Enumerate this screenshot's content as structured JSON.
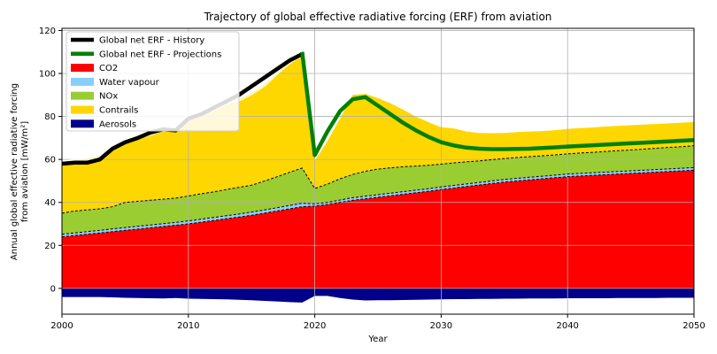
{
  "chart_data": {
    "type": "area",
    "title": "Trajectory of global effective radiative forcing (ERF) from aviation",
    "xlabel": "Year",
    "ylabel_lines": [
      "Annual global effective radiative forcing",
      "from aviation [mW/m²]"
    ],
    "xlim": [
      2000,
      2050
    ],
    "ylim": [
      -12,
      121
    ],
    "xticks": [
      2000,
      2010,
      2020,
      2030,
      2040,
      2050
    ],
    "yticks": [
      0,
      20,
      40,
      60,
      80,
      100,
      120
    ],
    "grid": true,
    "legend_position": "top-left",
    "x": [
      2000,
      2001,
      2002,
      2003,
      2004,
      2005,
      2006,
      2007,
      2008,
      2009,
      2010,
      2011,
      2012,
      2013,
      2014,
      2015,
      2016,
      2017,
      2018,
      2019,
      2020,
      2021,
      2022,
      2023,
      2024,
      2025,
      2026,
      2027,
      2028,
      2029,
      2030,
      2031,
      2032,
      2033,
      2034,
      2035,
      2036,
      2037,
      2038,
      2039,
      2040,
      2041,
      2042,
      2043,
      2044,
      2045,
      2046,
      2047,
      2048,
      2049,
      2050
    ],
    "series": [
      {
        "name": "CO2",
        "color": "#ff0000",
        "values": [
          24,
          24.6,
          25.2,
          25.8,
          26.4,
          27,
          27.6,
          28.2,
          28.8,
          29.4,
          30,
          30.8,
          31.6,
          32.4,
          33.2,
          34,
          35,
          36,
          37,
          38,
          38.3,
          39,
          40,
          41,
          41.7,
          42.4,
          43.1,
          43.8,
          44.5,
          45.2,
          46,
          46.7,
          47.4,
          48.1,
          48.8,
          49.5,
          50,
          50.5,
          51,
          51.5,
          52,
          52.3,
          52.6,
          52.9,
          53.2,
          53.5,
          53.8,
          54.1,
          54.4,
          54.7,
          55
        ]
      },
      {
        "name": "Water vapour",
        "color": "#87cefa",
        "values": [
          1.2,
          1.2,
          1.2,
          1.2,
          1.3,
          1.3,
          1.3,
          1.3,
          1.3,
          1.3,
          1.4,
          1.4,
          1.4,
          1.4,
          1.4,
          1.5,
          1.5,
          1.5,
          1.6,
          1.6,
          1,
          1,
          1.1,
          1.2,
          1.2,
          1.2,
          1.2,
          1.2,
          1.2,
          1.2,
          1.2,
          1.2,
          1.2,
          1.2,
          1.2,
          1.2,
          1.2,
          1.2,
          1.2,
          1.2,
          1.2,
          1.2,
          1.2,
          1.2,
          1.2,
          1.2,
          1.2,
          1.2,
          1.2,
          1.2,
          1.2
        ]
      },
      {
        "name": "NOx",
        "color": "#9acd32",
        "values": [
          9.8,
          10.2,
          10.1,
          10,
          10.3,
          11.7,
          11.6,
          11.5,
          11.4,
          11.3,
          11.6,
          11.8,
          11.9,
          12.2,
          12.4,
          12.5,
          13.4,
          14.4,
          15.4,
          16.4,
          7.2,
          8.5,
          9.9,
          10.8,
          11.6,
          11.9,
          11.8,
          11.6,
          11.2,
          10.9,
          10.6,
          10.5,
          10.3,
          10,
          9.9,
          9.7,
          9.7,
          9.6,
          9.5,
          9.4,
          9.4,
          9.5,
          9.5,
          9.6,
          9.7,
          9.7,
          9.8,
          9.9,
          10,
          10,
          10.2
        ]
      },
      {
        "name": "Contrails",
        "color": "#ffd700",
        "values": [
          23,
          23.5,
          24,
          24.5,
          27,
          29,
          30,
          31,
          32.5,
          32,
          37,
          37.5,
          38.5,
          40.5,
          41,
          43,
          45,
          48.5,
          51.5,
          53,
          12.8,
          20,
          28,
          37,
          36,
          33,
          30,
          26.5,
          23,
          20,
          17.2,
          16,
          14.1,
          13,
          12.3,
          11.9,
          11.8,
          11.7,
          11.5,
          11.5,
          11.6,
          11.6,
          11.6,
          11.6,
          11.5,
          11.5,
          11.4,
          11.3,
          11.2,
          11.2,
          11
        ]
      },
      {
        "name": "Aerosols",
        "color": "#00008b",
        "values": [
          -4,
          -4,
          -4,
          -4,
          -4.2,
          -4.4,
          -4.5,
          -4.6,
          -4.7,
          -4.5,
          -4.8,
          -4.9,
          -5,
          -5.1,
          -5.3,
          -5.5,
          -5.8,
          -6.1,
          -6.4,
          -6.6,
          -3.5,
          -3.5,
          -4.5,
          -5.2,
          -5.6,
          -5.5,
          -5.5,
          -5.4,
          -5.3,
          -5.2,
          -5.1,
          -5,
          -5,
          -4.9,
          -4.9,
          -4.8,
          -4.8,
          -4.7,
          -4.7,
          -4.7,
          -4.6,
          -4.6,
          -4.6,
          -4.6,
          -4.5,
          -4.5,
          -4.5,
          -4.5,
          -4.4,
          -4.4,
          -4.4
        ]
      },
      {
        "name": "Global net ERF - History",
        "color": "#000000",
        "x": [
          2000,
          2001,
          2002,
          2003,
          2004,
          2005,
          2006,
          2007,
          2008,
          2009,
          2010,
          2011,
          2012,
          2013,
          2014,
          2015,
          2016,
          2017,
          2018,
          2019
        ],
        "values": [
          58,
          58.5,
          58.5,
          60,
          65,
          68,
          70,
          72.5,
          74,
          73.5,
          79,
          81,
          84,
          87,
          90,
          94,
          98,
          102,
          106,
          109
        ]
      },
      {
        "name": "Global net ERF - Projections",
        "color": "#008000",
        "x": [
          2019,
          2020,
          2021,
          2022,
          2023,
          2024,
          2025,
          2026,
          2027,
          2028,
          2029,
          2030,
          2031,
          2032,
          2033,
          2034,
          2035,
          2036,
          2037,
          2038,
          2039,
          2040,
          2041,
          2042,
          2043,
          2044,
          2045,
          2046,
          2047,
          2048,
          2049,
          2050
        ],
        "values": [
          110,
          62,
          73,
          82.5,
          88,
          89,
          85,
          81,
          77,
          73.5,
          70.5,
          68,
          66.5,
          65.5,
          65,
          64.8,
          64.8,
          64.9,
          65,
          65.3,
          65.6,
          66,
          66.3,
          66.6,
          66.9,
          67.2,
          67.5,
          67.8,
          68.1,
          68.4,
          68.7,
          69
        ]
      }
    ],
    "legend": [
      {
        "label": "Global net ERF - History",
        "kind": "line",
        "color": "#000000"
      },
      {
        "label": "Global net ERF - Projections",
        "kind": "line",
        "color": "#008000"
      },
      {
        "label": "CO2",
        "kind": "patch",
        "color": "#ff0000"
      },
      {
        "label": "Water vapour",
        "kind": "patch",
        "color": "#87cefa"
      },
      {
        "label": "NOx",
        "kind": "patch",
        "color": "#9acd32"
      },
      {
        "label": "Contrails",
        "kind": "patch",
        "color": "#ffd700"
      },
      {
        "label": "Aerosols",
        "kind": "patch",
        "color": "#00008b"
      }
    ]
  }
}
